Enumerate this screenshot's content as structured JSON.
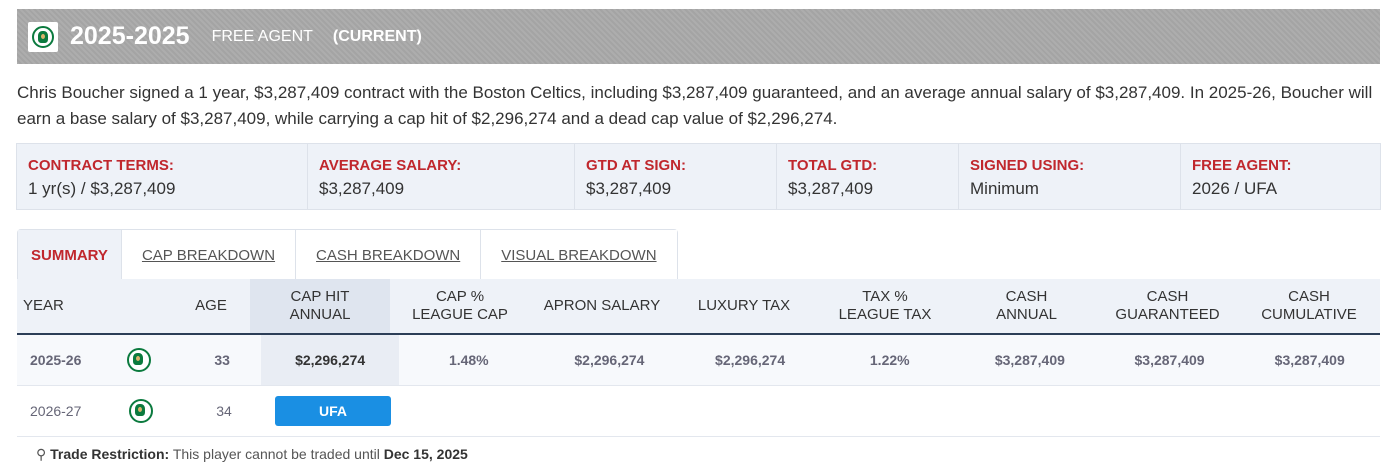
{
  "header": {
    "year_range": "2025-2025",
    "status": "FREE AGENT",
    "current": "(CURRENT)",
    "logo_icon": "celtics-logo-icon"
  },
  "description": "Chris Boucher signed a 1 year, $3,287,409 contract with the Boston Celtics, including $3,287,409 guaranteed, and an average annual salary of $3,287,409. In 2025-26, Boucher will earn a base salary of $3,287,409, while carrying a cap hit of $2,296,274 and a dead cap value of $2,296,274.",
  "terms": [
    {
      "label": "CONTRACT TERMS:",
      "value": "1 yr(s) / $3,287,409"
    },
    {
      "label": "AVERAGE SALARY:",
      "value": "$3,287,409"
    },
    {
      "label": "GTD AT SIGN:",
      "value": "$3,287,409"
    },
    {
      "label": "TOTAL GTD:",
      "value": "$3,287,409"
    },
    {
      "label": "SIGNED USING:",
      "value": "Minimum"
    },
    {
      "label": "FREE AGENT:",
      "value": "2026 / UFA"
    }
  ],
  "tabs": [
    {
      "label": "SUMMARY"
    },
    {
      "label": "CAP BREAKDOWN"
    },
    {
      "label": "CASH BREAKDOWN"
    },
    {
      "label": "VISUAL BREAKDOWN"
    }
  ],
  "table": {
    "headers": [
      {
        "line1": "YEAR",
        "line2": ""
      },
      {
        "line1": "",
        "line2": ""
      },
      {
        "line1": "AGE",
        "line2": ""
      },
      {
        "line1": "CAP HIT",
        "line2": "ANNUAL"
      },
      {
        "line1": "CAP %",
        "line2": "LEAGUE CAP"
      },
      {
        "line1": "APRON SALARY",
        "line2": ""
      },
      {
        "line1": "LUXURY TAX",
        "line2": ""
      },
      {
        "line1": "TAX %",
        "line2": "LEAGUE TAX"
      },
      {
        "line1": "CASH",
        "line2": "ANNUAL"
      },
      {
        "line1": "CASH",
        "line2": "GUARANTEED"
      },
      {
        "line1": "CASH",
        "line2": "CUMULATIVE"
      }
    ],
    "rows": [
      {
        "year": "2025-26",
        "age": "33",
        "cap_hit": "$2,296,274",
        "cap_pct": "1.48%",
        "apron": "$2,296,274",
        "lux_tax": "$2,296,274",
        "tax_pct": "1.22%",
        "cash_annual": "$3,287,409",
        "cash_gtd": "$3,287,409",
        "cash_cum": "$3,287,409"
      },
      {
        "year": "2026-27",
        "age": "34",
        "badge": "UFA"
      }
    ]
  },
  "trade_restriction": {
    "label": "Trade Restriction:",
    "text": "This player cannot be traded until",
    "date": "Dec 15, 2025"
  },
  "colors": {
    "accent_red": "#c0272d",
    "badge_blue": "#1a8fe3",
    "header_gray": "#a9a9a9",
    "celtics_green": "#0b7a3e"
  }
}
